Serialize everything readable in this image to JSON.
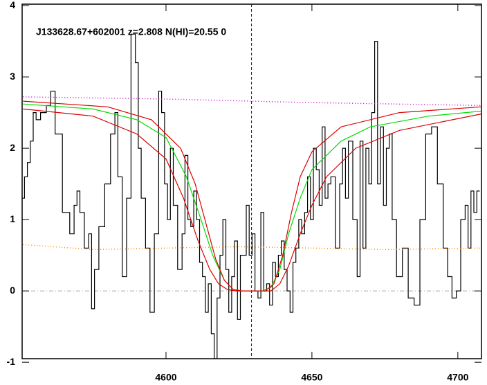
{
  "chart_data": {
    "type": "line",
    "title": "J133628.67+602001 z=2.808 N(HI)=20.55 0",
    "xlim": [
      4550.7,
      4708.1
    ],
    "ylim": [
      -0.95,
      4.02
    ],
    "xticks": [
      4600,
      4650,
      4700
    ],
    "yticks": [
      -1,
      0,
      1,
      2,
      3,
      4
    ],
    "zero_line": 0,
    "zero_line_color": "#aaaaaa",
    "marker_x": 4629.3,
    "marker_color": "#0000cc",
    "series": [
      {
        "color": "#000000",
        "style": "step",
        "x": [
          4551,
          4552,
          4553,
          4554,
          4555,
          4556,
          4558,
          4560,
          4561,
          4563,
          4566,
          4568,
          4569,
          4570,
          4571,
          4573,
          4574,
          4575,
          4576,
          4578,
          4580,
          4582,
          4583,
          4584,
          4586,
          4587,
          4589,
          4590,
          4591,
          4592,
          4594,
          4595,
          4597,
          4598,
          4599,
          4600,
          4601,
          4602,
          4603,
          4605,
          4606,
          4607,
          4608,
          4609,
          4610,
          4611,
          4612,
          4613,
          4614,
          4615,
          4616,
          4617,
          4618,
          4619,
          4620,
          4621,
          4622,
          4623,
          4624,
          4625,
          4626,
          4627,
          4628,
          4629,
          4630,
          4631,
          4632,
          4633,
          4634,
          4635,
          4636,
          4637,
          4638,
          4639,
          4640,
          4641,
          4642,
          4643,
          4644,
          4645,
          4646,
          4647,
          4648,
          4649,
          4650,
          4651,
          4652,
          4653,
          4654,
          4655,
          4656,
          4657,
          4659,
          4660,
          4661,
          4662,
          4663,
          4665,
          4666,
          4667,
          4668,
          4669,
          4670,
          4671,
          4672,
          4673,
          4674,
          4675,
          4676,
          4677,
          4678,
          4680,
          4682,
          4684,
          4686,
          4688,
          4690,
          4692,
          4694,
          4696,
          4697,
          4699,
          4700,
          4702,
          4703,
          4704,
          4705,
          4706,
          4707
        ],
        "values": [
          1.3,
          1.6,
          1.8,
          2.1,
          2.5,
          2.4,
          2.5,
          2.6,
          2.8,
          2.2,
          1.1,
          0.8,
          1.2,
          1.4,
          1.1,
          0.6,
          0.8,
          -0.25,
          0.3,
          0.9,
          1.5,
          2.2,
          2.5,
          1.6,
          0.2,
          1.3,
          3.6,
          3.2,
          2.0,
          1.3,
          0.6,
          -0.3,
          0.8,
          2.8,
          2.5,
          1.5,
          1.0,
          2.0,
          1.2,
          0.3,
          0.8,
          1.9,
          1.0,
          0.9,
          1.4,
          1.0,
          0.4,
          0.2,
          -0.3,
          0.1,
          -0.6,
          -0.95,
          -0.1,
          0.5,
          1.0,
          0.3,
          -0.3,
          0.2,
          0.7,
          -0.4,
          0.5,
          0.5,
          1.2,
          0.5,
          0.8,
          0.0,
          -0.1,
          1.1,
          0.0,
          0.1,
          -0.2,
          0.4,
          0.2,
          0.5,
          0.7,
          0.3,
          0.0,
          -0.3,
          0.4,
          0.6,
          1.0,
          0.8,
          1.1,
          1.6,
          1.0,
          2.0,
          1.7,
          1.2,
          2.3,
          1.3,
          1.5,
          1.6,
          0.6,
          1.5,
          2.0,
          1.3,
          2.1,
          1.0,
          0.2,
          2.1,
          0.6,
          2.0,
          1.5,
          2.5,
          3.5,
          1.5,
          2.3,
          1.2,
          2.0,
          2.2,
          1.0,
          0.2,
          0.6,
          -0.1,
          -0.2,
          1.0,
          2.2,
          2.3,
          1.5,
          0.6,
          0.2,
          -0.1,
          0.0,
          1.0,
          1.2,
          0.6,
          1.4,
          1.1,
          1.4
        ]
      },
      {
        "color": "#cc00cc",
        "style": "dotted",
        "x": [
          4551,
          4600,
          4650,
          4708
        ],
        "values": [
          2.72,
          2.69,
          2.64,
          2.6
        ]
      },
      {
        "color": "#ff8800",
        "style": "dotted",
        "x": [
          4551,
          4575,
          4600,
          4625,
          4650,
          4675,
          4708
        ],
        "values": [
          0.65,
          0.58,
          0.6,
          0.62,
          0.6,
          0.58,
          0.6
        ]
      },
      {
        "color": "#00dd00",
        "style": "solid",
        "x": [
          4551,
          4575,
          4590,
          4600,
          4607,
          4612,
          4616,
          4620,
          4623,
          4626,
          4633,
          4636,
          4639,
          4642,
          4646,
          4650,
          4660,
          4670,
          4690,
          4708
        ],
        "values": [
          2.62,
          2.55,
          2.4,
          2.15,
          1.6,
          1.0,
          0.5,
          0.15,
          0.02,
          0.0,
          0.0,
          0.05,
          0.3,
          0.8,
          1.3,
          1.7,
          2.1,
          2.3,
          2.45,
          2.52
        ]
      },
      {
        "color": "#dd0000",
        "style": "solid",
        "x": [
          4551,
          4580,
          4595,
          4605,
          4610,
          4614,
          4617,
          4620,
          4623,
          4626,
          4634,
          4637,
          4640,
          4643,
          4646,
          4650,
          4660,
          4680,
          4708
        ],
        "values": [
          2.66,
          2.58,
          2.4,
          2.0,
          1.5,
          0.9,
          0.45,
          0.15,
          0.02,
          0.0,
          0.0,
          0.1,
          0.5,
          1.1,
          1.6,
          1.95,
          2.3,
          2.5,
          2.58
        ]
      },
      {
        "color": "#dd0000",
        "style": "solid",
        "x": [
          4551,
          4575,
          4590,
          4600,
          4606,
          4611,
          4615,
          4618,
          4621,
          4624,
          4636,
          4639,
          4642,
          4646,
          4650,
          4655,
          4665,
          4680,
          4708
        ],
        "values": [
          2.55,
          2.45,
          2.2,
          1.85,
          1.3,
          0.7,
          0.3,
          0.1,
          0.02,
          0.0,
          0.0,
          0.1,
          0.35,
          0.8,
          1.2,
          1.6,
          2.0,
          2.25,
          2.48
        ]
      }
    ]
  }
}
